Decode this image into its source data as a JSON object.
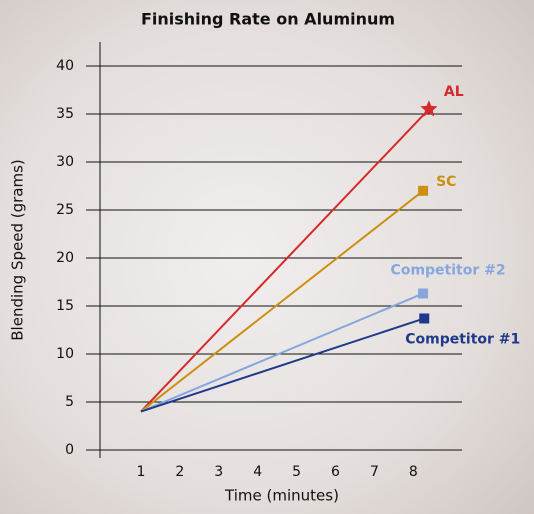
{
  "chart_data": {
    "type": "line",
    "title": "Finishing Rate on Aluminum",
    "x_label": "Time (minutes)",
    "y_label": "Blending Speed (grams)",
    "xlim": [
      0,
      9.25
    ],
    "xticks": [
      1,
      2,
      3,
      4,
      5,
      6,
      7,
      8
    ],
    "ylim": [
      0,
      42.5
    ],
    "yticks": [
      0,
      5,
      10,
      15,
      20,
      25,
      30,
      35,
      40
    ],
    "grid": true,
    "series": [
      {
        "name": "AL",
        "color": "#d42a2a",
        "marker": "star",
        "x": [
          1,
          8.4
        ],
        "values": [
          4,
          35.5
        ]
      },
      {
        "name": "SC",
        "color": "#cc9010",
        "marker": "square",
        "x": [
          1,
          8.25
        ],
        "values": [
          4,
          27
        ]
      },
      {
        "name": "Competitor #2",
        "color": "#86a6dc",
        "marker": "square",
        "x": [
          1,
          8.25
        ],
        "values": [
          4,
          16.3
        ]
      },
      {
        "name": "Competitor #1",
        "color": "#1f3a8a",
        "marker": "square",
        "x": [
          1,
          8.28
        ],
        "values": [
          4,
          13.7
        ]
      }
    ]
  }
}
